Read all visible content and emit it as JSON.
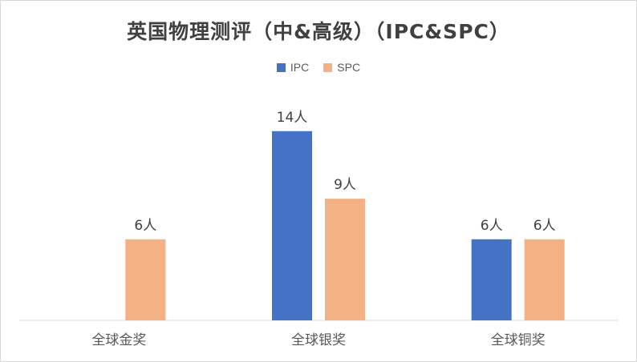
{
  "chart_data": {
    "type": "bar",
    "title": "英国物理测评（中&高级）（IPC&SPC）",
    "categories": [
      "全球金奖",
      "全球银奖",
      "全球铜奖"
    ],
    "series": [
      {
        "name": "IPC",
        "values": [
          null,
          14,
          6
        ],
        "labels": [
          "",
          "14人",
          "6人"
        ]
      },
      {
        "name": "SPC",
        "values": [
          6,
          9,
          6
        ],
        "labels": [
          "6人",
          "9人",
          "6人"
        ]
      }
    ],
    "colors": {
      "IPC": "#4472C4",
      "SPC": "#F4B183"
    },
    "ylim": [
      0,
      16
    ],
    "grid": false,
    "legend_position": "top"
  }
}
